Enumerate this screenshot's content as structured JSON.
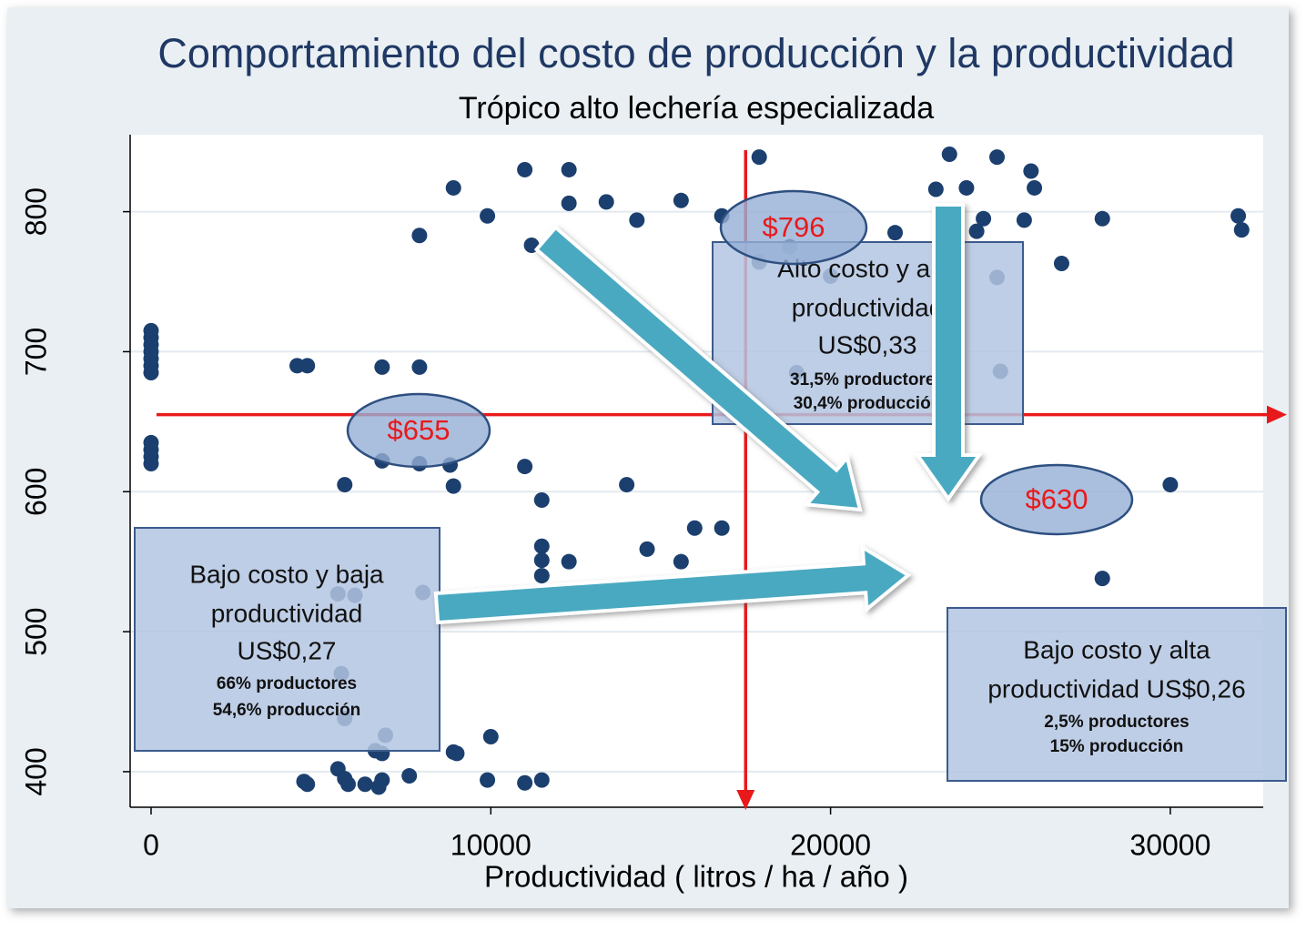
{
  "chart_data": {
    "type": "scatter",
    "title": "Comportamiento del costo de producción y la productividad",
    "subtitle": "Trópico alto lechería especializada",
    "x_label": "Productividad ( litros / ha / año )",
    "xlim": [
      -616,
      32735
    ],
    "ylim": [
      374.6,
      855
    ],
    "xticks": [
      0,
      10000,
      20000,
      30000
    ],
    "yticks": [
      400,
      500,
      600,
      700,
      800
    ],
    "grid": true,
    "x": [
      0,
      0,
      0,
      0,
      0,
      0,
      0,
      0,
      0,
      0,
      0,
      4300,
      4600,
      6800,
      7900,
      7900,
      8900,
      9900,
      11000,
      12300,
      11200,
      12300,
      13400,
      14300,
      15600,
      16800,
      17900,
      18800,
      17900,
      20000,
      21900,
      23500,
      23100,
      24000,
      24900,
      25900,
      26000,
      24500,
      24300,
      25700,
      24900,
      25000,
      26800,
      28000,
      32000,
      32100,
      19000,
      30000,
      28000,
      5700,
      6800,
      7900,
      8800,
      8900,
      11000,
      11500,
      14000,
      11500,
      11500,
      11500,
      12300,
      14600,
      15600,
      16000,
      16800,
      5500,
      6000,
      8000,
      5600,
      5700,
      6900,
      6600,
      6800,
      8900,
      9000,
      10000,
      4500,
      4600,
      5500,
      5700,
      5800,
      6300,
      6800,
      6700,
      7600,
      9900,
      11000,
      11500
    ],
    "series": [
      {
        "color": "#1b3f6e",
        "values": [
          715,
          710,
          705,
          700,
          695,
          690,
          685,
          635,
          630,
          625,
          620,
          690,
          690,
          689,
          689,
          783,
          817,
          797,
          830,
          830,
          776,
          806,
          807,
          794,
          808,
          797,
          839,
          775,
          764,
          754,
          785,
          841,
          816,
          817,
          839,
          829,
          817,
          795,
          786,
          794,
          753,
          686,
          763,
          795,
          797,
          787,
          685,
          605,
          538,
          605,
          622,
          620,
          619,
          604,
          618,
          594,
          605,
          561,
          551,
          540,
          550,
          559,
          550,
          574,
          574,
          527,
          526,
          528,
          470,
          438,
          426,
          415,
          413,
          414,
          413,
          425,
          393,
          391,
          402,
          395,
          391,
          391,
          394,
          389,
          397,
          394,
          392,
          394
        ]
      }
    ],
    "reference_lines": {
      "x": 17500,
      "y": 655,
      "color": "#e8191b"
    },
    "cost_labels": [
      "$796",
      "$655",
      "$630"
    ],
    "boxes": [
      {
        "lines": [
          "Alto costo y alta",
          "productividad",
          "US$0,33",
          "31,5% productores",
          "30,4% producción"
        ]
      },
      {
        "lines": [
          "Bajo costo y baja",
          "productividad",
          "US$0,27",
          "66% productores",
          "54,6% producción"
        ]
      },
      {
        "lines": [
          "Bajo costo  y alta",
          "productividad US$0,26",
          "2,5% productores",
          "15% producción"
        ]
      }
    ]
  }
}
